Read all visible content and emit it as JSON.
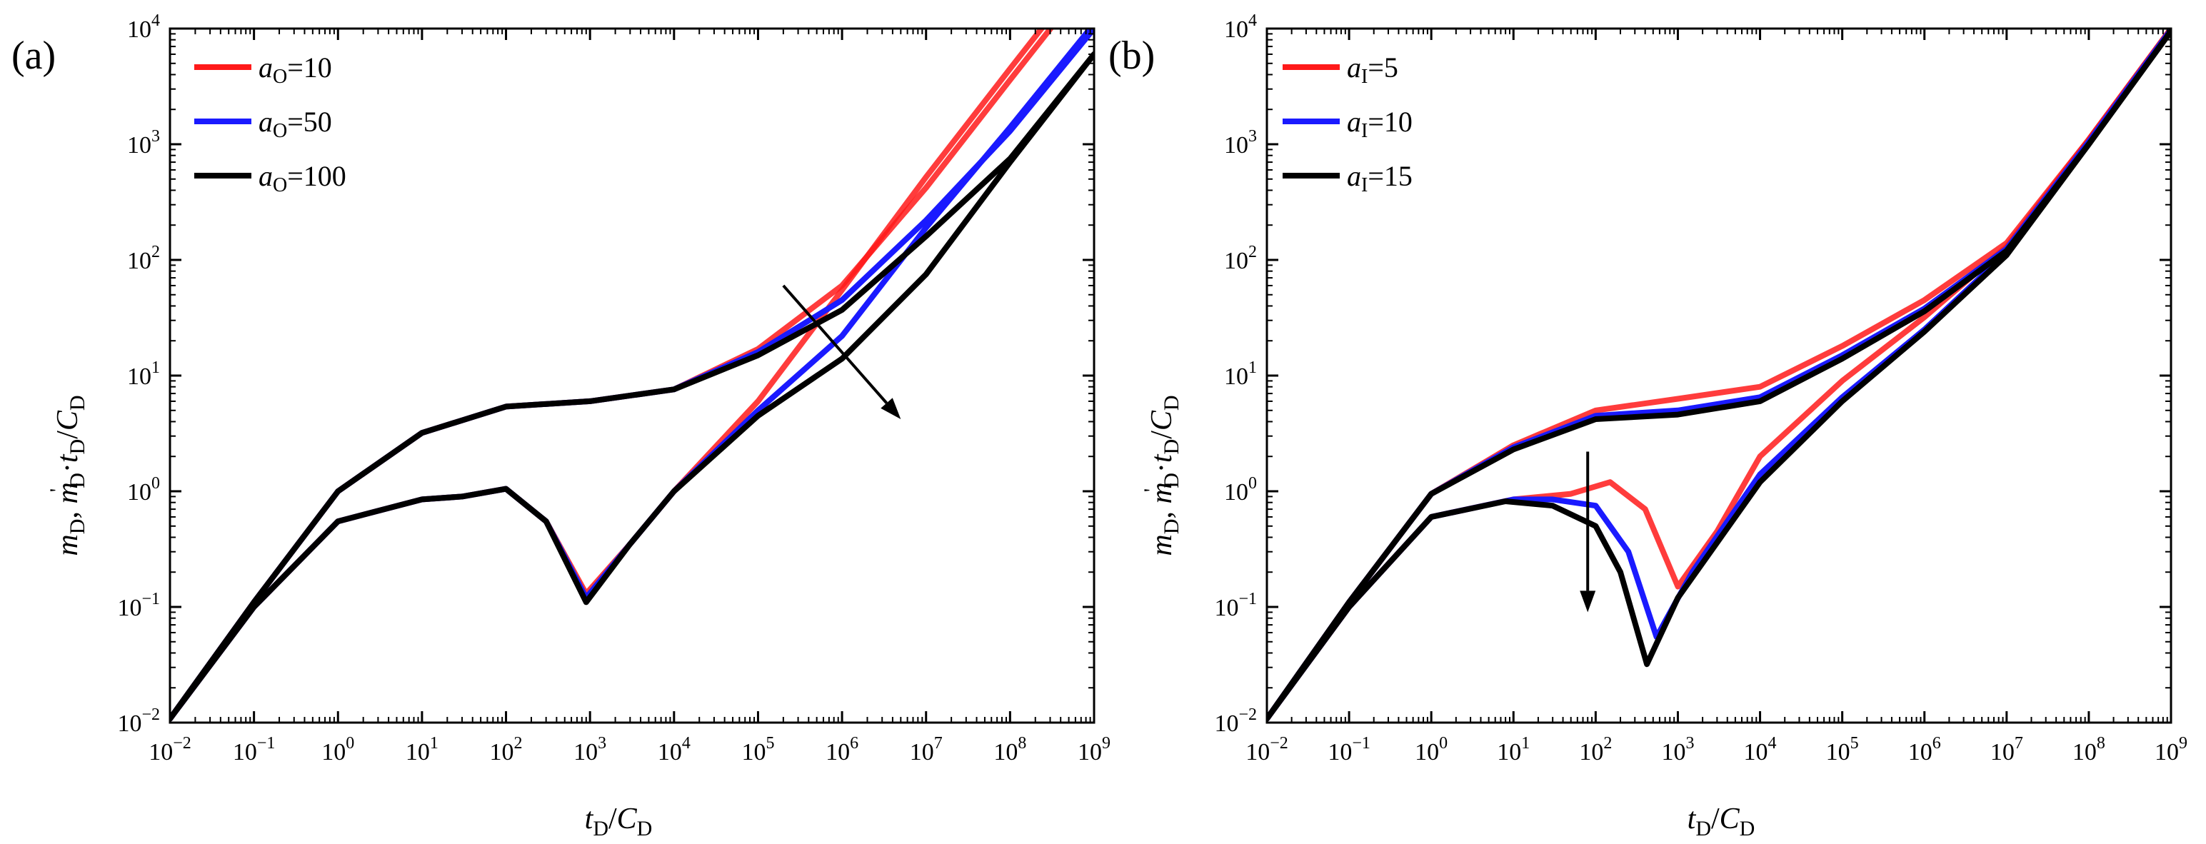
{
  "figure": {
    "background": "#ffffff"
  },
  "panels": [
    {
      "letter": "(a)",
      "legend": [
        {
          "var": "a",
          "sub": "O",
          "value": "=10",
          "color": "#ff1a1a"
        },
        {
          "var": "a",
          "sub": "O",
          "value": "=50",
          "color": "#1a1aff"
        },
        {
          "var": "a",
          "sub": "O",
          "value": "=100",
          "color": "#000000"
        }
      ]
    },
    {
      "letter": "(b)",
      "legend": [
        {
          "var": "a",
          "sub": "I",
          "value": "=5",
          "color": "#ff1a1a"
        },
        {
          "var": "a",
          "sub": "I",
          "value": "=10",
          "color": "#1a1aff"
        },
        {
          "var": "a",
          "sub": "I",
          "value": "=15",
          "color": "#000000"
        }
      ]
    }
  ],
  "axes": {
    "x_label": {
      "v1": "t",
      "s1": "D",
      "slash": "/",
      "v2": "C",
      "s2": "D"
    },
    "y_label": {
      "v1": "m",
      "s1": "D",
      "comma": ", ",
      "v2": "m",
      "prime": "'",
      "s2": "D",
      "dot": "·",
      "v3": "t",
      "s3": "D",
      "slash": "/",
      "v4": "C",
      "s4": "D"
    },
    "x_ticks": [
      {
        "base": "10",
        "exp": "−2"
      },
      {
        "base": "10",
        "exp": "−1"
      },
      {
        "base": "10",
        "exp": "0"
      },
      {
        "base": "10",
        "exp": "1"
      },
      {
        "base": "10",
        "exp": "2"
      },
      {
        "base": "10",
        "exp": "3"
      },
      {
        "base": "10",
        "exp": "4"
      },
      {
        "base": "10",
        "exp": "5"
      },
      {
        "base": "10",
        "exp": "6"
      },
      {
        "base": "10",
        "exp": "7"
      },
      {
        "base": "10",
        "exp": "8"
      },
      {
        "base": "10",
        "exp": "9"
      }
    ],
    "y_ticks": [
      {
        "base": "10",
        "exp": "−2"
      },
      {
        "base": "10",
        "exp": "−1"
      },
      {
        "base": "10",
        "exp": "0"
      },
      {
        "base": "10",
        "exp": "1"
      },
      {
        "base": "10",
        "exp": "2"
      },
      {
        "base": "10",
        "exp": "3"
      },
      {
        "base": "10",
        "exp": "4"
      }
    ]
  },
  "chart_data": [
    {
      "type": "line",
      "x_scale": "log",
      "y_scale": "log",
      "xlim": [
        0.01,
        1000000000
      ],
      "ylim": [
        0.01,
        10000
      ],
      "grid": false,
      "legend_position": "top-left",
      "annotations": [
        {
          "type": "arrow",
          "from": [
            200000,
            60
          ],
          "to": [
            5000000,
            4.2
          ]
        }
      ],
      "series": [
        {
          "name": "aO=10",
          "color": "#ff1a1a",
          "kind": "pressure",
          "x": [
            0.01,
            0.1,
            1,
            10,
            100,
            1000,
            10000,
            100000,
            1000000,
            10000000,
            100000000,
            1000000000
          ],
          "y": [
            0.0108,
            0.11,
            1.0,
            3.2,
            5.4,
            6.0,
            7.6,
            17,
            60,
            420,
            3600,
            30000
          ]
        },
        {
          "name": "aO=10",
          "color": "#ff1a1a",
          "kind": "derivative",
          "x": [
            0.01,
            0.1,
            1,
            10,
            30,
            100,
            300,
            900,
            3000,
            10000,
            100000,
            1000000,
            10000000,
            100000000,
            1000000000
          ],
          "y": [
            0.0108,
            0.1,
            0.55,
            0.85,
            0.9,
            1.05,
            0.55,
            0.13,
            0.35,
            1.0,
            6.0,
            55,
            520,
            4500,
            38000
          ]
        },
        {
          "name": "aO=50",
          "color": "#1a1aff",
          "kind": "pressure",
          "x": [
            0.01,
            0.1,
            1,
            10,
            100,
            1000,
            10000,
            100000,
            1000000,
            10000000,
            100000000,
            1000000000
          ],
          "y": [
            0.0108,
            0.11,
            1.0,
            3.2,
            5.4,
            6.0,
            7.6,
            16,
            45,
            220,
            1300,
            10000
          ]
        },
        {
          "name": "aO=50",
          "color": "#1a1aff",
          "kind": "derivative",
          "x": [
            0.01,
            0.1,
            1,
            10,
            30,
            100,
            300,
            900,
            3000,
            10000,
            100000,
            1000000,
            10000000,
            100000000,
            1000000000
          ],
          "y": [
            0.0108,
            0.1,
            0.55,
            0.85,
            0.9,
            1.05,
            0.55,
            0.12,
            0.35,
            1.0,
            5.0,
            22,
            190,
            1400,
            11000
          ]
        },
        {
          "name": "aO=100",
          "color": "#000000",
          "kind": "pressure",
          "x": [
            0.01,
            0.1,
            1,
            10,
            100,
            1000,
            10000,
            100000,
            1000000,
            10000000,
            100000000,
            1000000000
          ],
          "y": [
            0.0108,
            0.11,
            1.0,
            3.2,
            5.4,
            6.0,
            7.6,
            15,
            37,
            160,
            750,
            6000
          ]
        },
        {
          "name": "aO=100",
          "color": "#000000",
          "kind": "derivative",
          "x": [
            0.01,
            0.1,
            1,
            10,
            30,
            100,
            300,
            900,
            3000,
            10000,
            100000,
            1000000,
            10000000,
            100000000,
            1000000000
          ],
          "y": [
            0.0108,
            0.1,
            0.55,
            0.85,
            0.9,
            1.05,
            0.55,
            0.11,
            0.35,
            1.0,
            4.5,
            14,
            75,
            700,
            6000
          ]
        }
      ]
    },
    {
      "type": "line",
      "x_scale": "log",
      "y_scale": "log",
      "xlim": [
        0.01,
        1000000000
      ],
      "ylim": [
        0.01,
        10000
      ],
      "grid": false,
      "legend_position": "top-left",
      "annotations": [
        {
          "type": "arrow",
          "from": [
            80,
            2.2
          ],
          "to": [
            80,
            0.09
          ]
        }
      ],
      "series": [
        {
          "name": "aI=5",
          "color": "#ff1a1a",
          "kind": "pressure",
          "x": [
            0.01,
            0.1,
            1,
            10,
            100,
            1000,
            10000,
            100000,
            1000000,
            10000000,
            100000000,
            1000000000
          ],
          "y": [
            0.0108,
            0.11,
            0.95,
            2.5,
            5.0,
            6.3,
            8.0,
            18,
            45,
            140,
            1100,
            10000
          ]
        },
        {
          "name": "aI=5",
          "color": "#ff1a1a",
          "kind": "derivative",
          "x": [
            0.01,
            0.1,
            1,
            10,
            50,
            150,
            400,
            1000,
            3000,
            10000,
            100000,
            1000000,
            10000000,
            100000000,
            1000000000
          ],
          "y": [
            0.0108,
            0.1,
            0.6,
            0.85,
            0.95,
            1.2,
            0.7,
            0.15,
            0.45,
            2.0,
            9.0,
            32,
            130,
            1100,
            10000
          ]
        },
        {
          "name": "aI=10",
          "color": "#1a1aff",
          "kind": "pressure",
          "x": [
            0.01,
            0.1,
            1,
            10,
            100,
            1000,
            10000,
            100000,
            1000000,
            10000000,
            100000000,
            1000000000
          ],
          "y": [
            0.0108,
            0.11,
            0.95,
            2.4,
            4.5,
            5.0,
            6.5,
            15,
            38,
            125,
            1050,
            9800
          ]
        },
        {
          "name": "aI=10",
          "color": "#1a1aff",
          "kind": "derivative",
          "x": [
            0.01,
            0.1,
            1,
            10,
            30,
            100,
            250,
            550,
            1500,
            10000,
            100000,
            1000000,
            10000000,
            100000000,
            1000000000
          ],
          "y": [
            0.0108,
            0.1,
            0.6,
            0.85,
            0.85,
            0.75,
            0.3,
            0.055,
            0.2,
            1.4,
            6.5,
            25,
            115,
            1050,
            9800
          ]
        },
        {
          "name": "aI=15",
          "color": "#000000",
          "kind": "pressure",
          "x": [
            0.01,
            0.1,
            1,
            10,
            100,
            1000,
            10000,
            100000,
            1000000,
            10000000,
            100000000,
            1000000000
          ],
          "y": [
            0.0108,
            0.11,
            0.95,
            2.3,
            4.2,
            4.6,
            6.0,
            14,
            36,
            120,
            1000,
            9500
          ]
        },
        {
          "name": "aI=15",
          "color": "#000000",
          "kind": "derivative",
          "x": [
            0.01,
            0.1,
            1,
            8,
            30,
            100,
            200,
            420,
            1000,
            10000,
            100000,
            1000000,
            10000000,
            100000000,
            1000000000
          ],
          "y": [
            0.0108,
            0.1,
            0.6,
            0.82,
            0.75,
            0.5,
            0.2,
            0.032,
            0.12,
            1.2,
            6.0,
            24,
            110,
            1000,
            9500
          ]
        }
      ]
    }
  ]
}
